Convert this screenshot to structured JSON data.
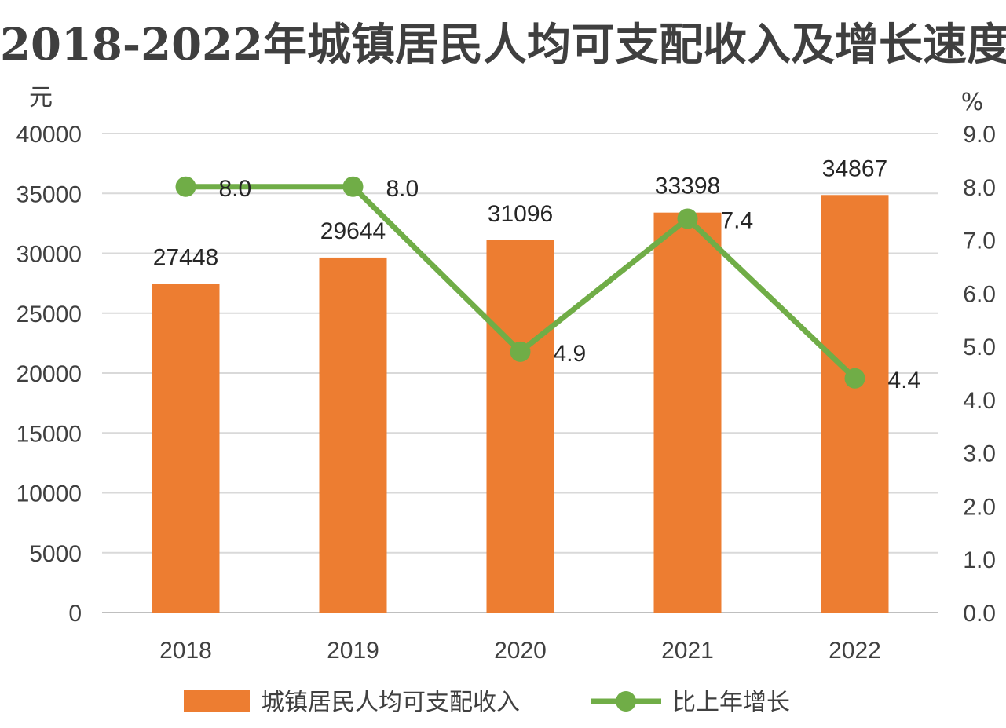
{
  "chart_data": {
    "type": "bar+line",
    "title": "2018-2022年城镇居民人均可支配收入及增长速度",
    "categories": [
      "2018",
      "2019",
      "2020",
      "2021",
      "2022"
    ],
    "left_axis": {
      "unit": "元",
      "min": 0,
      "max": 40000,
      "step": 5000,
      "ticks": [
        "0",
        "5000",
        "10000",
        "15000",
        "20000",
        "25000",
        "30000",
        "35000",
        "40000"
      ]
    },
    "right_axis": {
      "unit": "%",
      "min": 0,
      "max": 9,
      "step": 1,
      "ticks": [
        "0.0",
        "1.0",
        "2.0",
        "3.0",
        "4.0",
        "5.0",
        "6.0",
        "7.0",
        "8.0",
        "9.0"
      ]
    },
    "grid": true,
    "legend_position": "bottom",
    "series": [
      {
        "name": "城镇居民人均可支配收入",
        "type": "bar",
        "axis": "left",
        "color": "#ED7D31",
        "values": [
          27448,
          29644,
          31096,
          33398,
          34867
        ],
        "labels": [
          "27448",
          "29644",
          "31096",
          "33398",
          "34867"
        ]
      },
      {
        "name": "比上年增长",
        "type": "line",
        "axis": "right",
        "color": "#70AD47",
        "values": [
          8.0,
          8.0,
          4.9,
          7.4,
          4.4
        ],
        "labels": [
          "8.0",
          "8.0",
          "4.9",
          "7.4",
          "4.4"
        ]
      }
    ]
  }
}
